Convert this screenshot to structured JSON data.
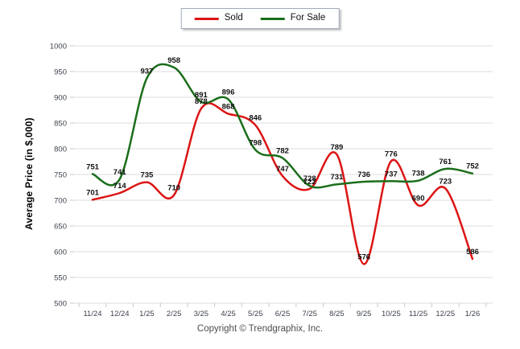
{
  "chart_data": {
    "type": "line",
    "title": "",
    "ylabel": "Average Price (in $,000)",
    "ylim": [
      500,
      1000
    ],
    "ytick_step": 50,
    "grid": true,
    "legend_position": "top-center",
    "point_labels": true,
    "categories": [
      "11/24",
      "12/24",
      "1/25",
      "2/25",
      "3/25",
      "4/25",
      "5/25",
      "6/25",
      "7/25",
      "8/25",
      "9/25",
      "10/25",
      "11/25",
      "12/25",
      "1/26"
    ],
    "series": [
      {
        "name": "Sold",
        "color": "#dc1414",
        "values": [
          701,
          714,
          735,
          710,
          878,
          868,
          846,
          747,
          722,
          789,
          576,
          776,
          690,
          723,
          586
        ]
      },
      {
        "name": "For Sale",
        "color": "#1a6e1a",
        "values": [
          751,
          741,
          937,
          958,
          891,
          896,
          798,
          782,
          728,
          731,
          736,
          737,
          738,
          761,
          752
        ]
      }
    ]
  },
  "footer": {
    "copyright": "Copyright © Trendgraphix, Inc."
  }
}
